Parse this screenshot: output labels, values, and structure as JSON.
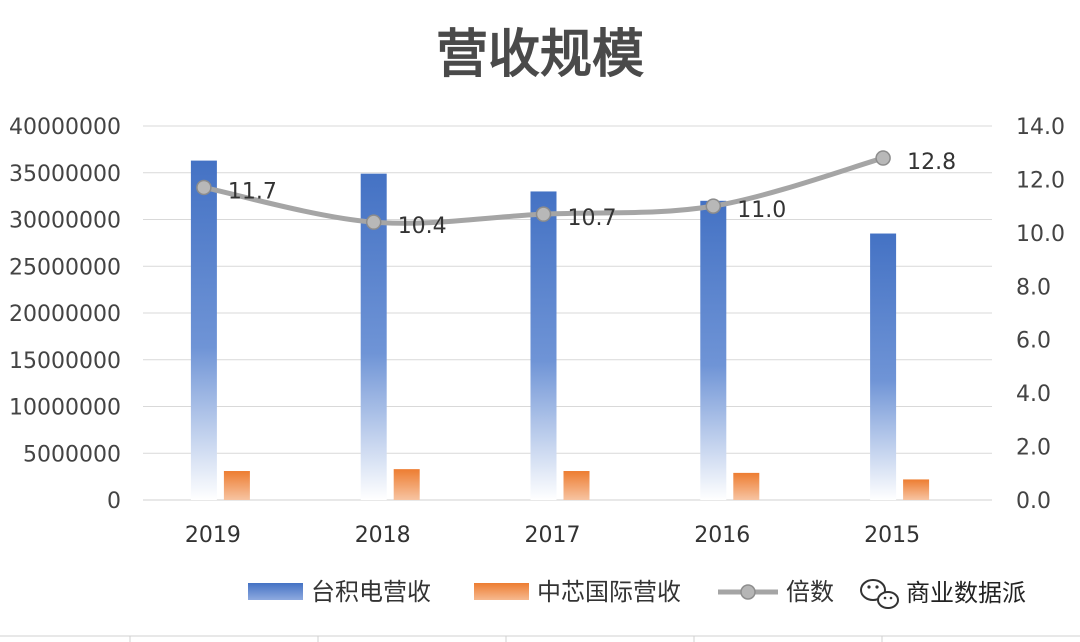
{
  "chart_data": {
    "type": "bar",
    "title": "营收规模",
    "categories": [
      "2019",
      "2018",
      "2017",
      "2016",
      "2015"
    ],
    "series": [
      {
        "name": "台积电营收",
        "kind": "bar",
        "axis": "left",
        "color": "#4472c4",
        "values": [
          36300000,
          34900000,
          33000000,
          32000000,
          28500000
        ]
      },
      {
        "name": "中芯国际营收",
        "kind": "bar",
        "axis": "left",
        "color": "#ed7d31",
        "values": [
          3100000,
          3300000,
          3100000,
          2900000,
          2200000
        ]
      },
      {
        "name": "倍数",
        "kind": "line",
        "axis": "right",
        "color": "#a5a5a5",
        "values": [
          11.7,
          10.4,
          10.7,
          11.0,
          12.8
        ],
        "labels": [
          "11.7",
          "10.4",
          "10.7",
          "11.0",
          "12.8"
        ]
      }
    ],
    "y_left": {
      "ylim": [
        0,
        40000000
      ],
      "ticks": [
        "0",
        "5000000",
        "10000000",
        "15000000",
        "20000000",
        "25000000",
        "30000000",
        "35000000",
        "40000000"
      ]
    },
    "y_right": {
      "ylim": [
        0,
        14
      ],
      "ticks": [
        "0.0",
        "2.0",
        "4.0",
        "6.0",
        "8.0",
        "10.0",
        "12.0",
        "14.0"
      ]
    },
    "grid": true,
    "legend_position": "bottom"
  },
  "watermark": {
    "text": "商业数据派",
    "icon": "wechat-icon"
  }
}
